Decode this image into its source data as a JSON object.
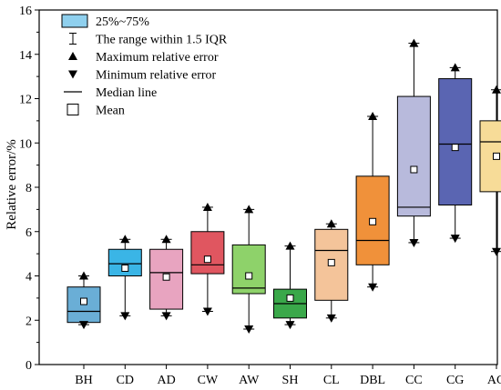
{
  "chart_data": {
    "type": "box",
    "ylabel": "Relative error/%",
    "xlabel": "",
    "ylim": [
      0,
      16
    ],
    "yticks": [
      0,
      2,
      4,
      6,
      8,
      10,
      12,
      14,
      16
    ],
    "grid": false,
    "legend_position": "top-left",
    "legend": [
      {
        "symbol": "box",
        "label": "25%~75%"
      },
      {
        "symbol": "whisker",
        "label": "The range within 1.5 IQR"
      },
      {
        "symbol": "triangle-up",
        "label": "Maximum relative error"
      },
      {
        "symbol": "triangle-down",
        "label": "Minimum relative error"
      },
      {
        "symbol": "line",
        "label": "Median line"
      },
      {
        "symbol": "square",
        "label": "Mean"
      }
    ],
    "categories": [
      "BH",
      "CD",
      "AD",
      "CW",
      "AW",
      "SH",
      "CL",
      "DBL",
      "CC",
      "CG",
      "AG"
    ],
    "boxes": [
      {
        "category": "BH",
        "min": 1.8,
        "q1": 1.9,
        "median": 2.4,
        "q3": 3.5,
        "max": 4.0,
        "mean": 2.85,
        "color": "#6aaed6"
      },
      {
        "category": "CD",
        "min": 2.2,
        "q1": 4.0,
        "median": 4.55,
        "q3": 5.2,
        "max": 5.65,
        "mean": 4.35,
        "color": "#3ab5e6"
      },
      {
        "category": "AD",
        "min": 2.2,
        "q1": 2.5,
        "median": 4.15,
        "q3": 5.2,
        "max": 5.65,
        "mean": 3.95,
        "color": "#e8a4c0"
      },
      {
        "category": "CW",
        "min": 2.4,
        "q1": 4.1,
        "median": 4.5,
        "q3": 6.0,
        "max": 7.1,
        "mean": 4.75,
        "color": "#e05660"
      },
      {
        "category": "AW",
        "min": 1.6,
        "q1": 3.2,
        "median": 3.45,
        "q3": 5.4,
        "max": 7.0,
        "mean": 4.0,
        "color": "#8ed26a"
      },
      {
        "category": "SH",
        "min": 1.8,
        "q1": 2.1,
        "median": 2.75,
        "q3": 3.4,
        "max": 5.35,
        "mean": 3.0,
        "color": "#3aa84a"
      },
      {
        "category": "CL",
        "min": 2.1,
        "q1": 2.9,
        "median": 5.15,
        "q3": 6.1,
        "max": 6.35,
        "mean": 4.6,
        "color": "#f4c49a"
      },
      {
        "category": "DBL",
        "min": 3.5,
        "q1": 4.5,
        "median": 5.6,
        "q3": 8.5,
        "max": 11.2,
        "mean": 6.45,
        "color": "#f0913a"
      },
      {
        "category": "CC",
        "min": 5.5,
        "q1": 6.7,
        "median": 7.1,
        "q3": 12.1,
        "max": 14.5,
        "mean": 8.8,
        "color": "#b8badc"
      },
      {
        "category": "CG",
        "min": 5.7,
        "q1": 7.2,
        "median": 9.95,
        "q3": 12.9,
        "max": 13.4,
        "mean": 9.8,
        "color": "#5a65b2"
      },
      {
        "category": "AG",
        "min": 5.1,
        "q1": 7.8,
        "median": 10.05,
        "q3": 11.0,
        "max": 12.4,
        "mean": 9.4,
        "color": "#f7dc98"
      }
    ],
    "legend_box_color": "#8fd0ee"
  }
}
